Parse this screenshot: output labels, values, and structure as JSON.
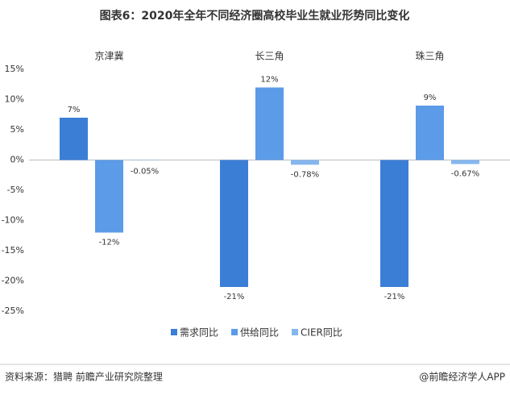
{
  "chart_data": {
    "type": "bar",
    "title": "图表6：2020年全年不同经济圈高校毕业生就业形势同比变化",
    "categories": [
      "京津冀",
      "长三角",
      "珠三角"
    ],
    "series": [
      {
        "name": "需求同比",
        "color": "#3b7ed6",
        "values": [
          7,
          -21,
          -21
        ],
        "value_labels": [
          "7%",
          "-21%",
          "-21%"
        ]
      },
      {
        "name": "供给同比",
        "color": "#5b9be8",
        "values": [
          -12,
          12,
          9
        ],
        "value_labels": [
          "-12%",
          "12%",
          "9%"
        ]
      },
      {
        "name": "CIER同比",
        "color": "#85b7ee",
        "values": [
          -0.05,
          -0.78,
          -0.67
        ],
        "value_labels": [
          "-0.05%",
          "-0.78%",
          "-0.67%"
        ]
      }
    ],
    "ylim": [
      -25,
      15
    ],
    "yticks": [
      {
        "value": 15,
        "label": "15%"
      },
      {
        "value": 10,
        "label": "10%"
      },
      {
        "value": 5,
        "label": "5%"
      },
      {
        "value": 0,
        "label": "0%"
      },
      {
        "value": -5,
        "label": "-5%"
      },
      {
        "value": -10,
        "label": "-10%"
      },
      {
        "value": -15,
        "label": "-15%"
      },
      {
        "value": -20,
        "label": "-20%"
      },
      {
        "value": -25,
        "label": "-25%"
      }
    ],
    "legend": "bottom",
    "source": "资料来源：猎聘 前瞻产业研究院整理",
    "credit": "@前瞻经济学人APP"
  }
}
